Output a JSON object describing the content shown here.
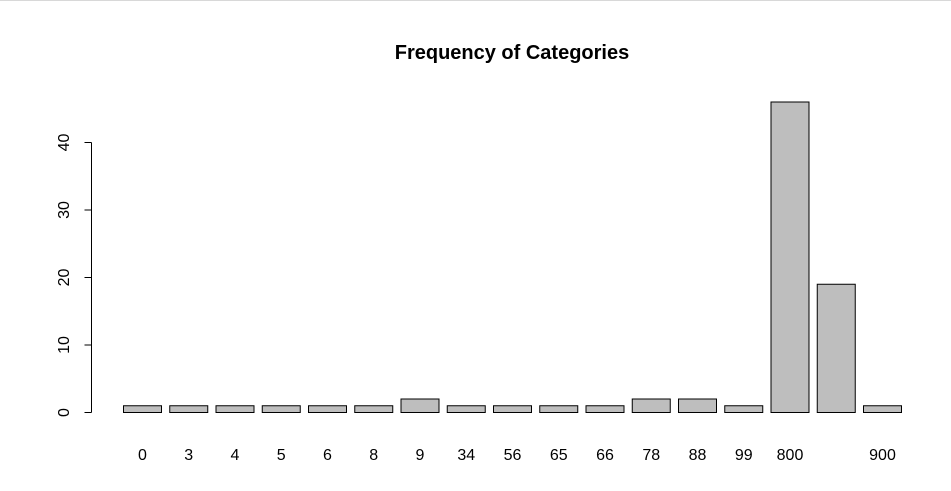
{
  "chart_data": {
    "type": "bar",
    "title": "Frequency of Categories",
    "xlabel": "",
    "ylabel": "",
    "categories": [
      "0",
      "3",
      "4",
      "5",
      "6",
      "8",
      "9",
      "34",
      "56",
      "65",
      "66",
      "78",
      "88",
      "99",
      "800",
      "",
      "900"
    ],
    "values": [
      1,
      1,
      1,
      1,
      1,
      1,
      2,
      1,
      1,
      1,
      1,
      2,
      2,
      1,
      46,
      19,
      1
    ],
    "ylim": [
      0,
      46
    ],
    "yticks": [
      0,
      10,
      20,
      30,
      40
    ],
    "grid": false,
    "bar_color": "#bebebe",
    "border_color": "#000000"
  }
}
